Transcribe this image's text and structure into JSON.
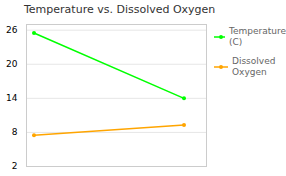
{
  "chart_data": {
    "type": "line",
    "title": "Temperature vs. Dissolved Oxygen",
    "x": [
      0,
      1
    ],
    "series": [
      {
        "name": "Temperature\n(C)",
        "color": "#00ff00",
        "values": [
          25.5,
          14.0
        ]
      },
      {
        "name": "Dissolved\nOxygen",
        "color": "#ffa500",
        "values": [
          7.5,
          9.3
        ]
      }
    ],
    "xlim": [
      -0.05,
      1.15
    ],
    "ylim": [
      2,
      27
    ],
    "yticks": [
      2,
      8,
      14,
      20,
      26
    ],
    "grid": true,
    "legend": "right",
    "marker": "circle",
    "tick_labels": "y"
  }
}
